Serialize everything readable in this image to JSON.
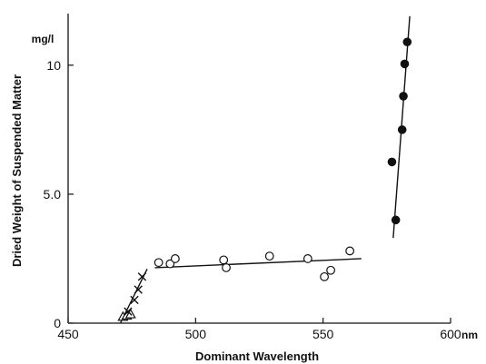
{
  "chart_data": {
    "type": "scatter",
    "xlabel": "Dominant Wavelength",
    "ylabel": "Dried Weight of Suspended Matter",
    "x_unit": "nm",
    "y_unit": "mg/l",
    "xlim": [
      450,
      600
    ],
    "ylim": [
      0,
      12
    ],
    "x_ticks": [
      450,
      500,
      550,
      600
    ],
    "x_tick_labels": [
      "450",
      "500",
      "550",
      "600"
    ],
    "y_ticks": [
      0,
      5.0,
      10
    ],
    "y_tick_labels": [
      "0",
      "5.0",
      "10"
    ],
    "grid": false,
    "legend": "none",
    "series": [
      {
        "marker": "triangle",
        "points": [
          [
            471.5,
            0.25
          ],
          [
            473.0,
            0.3
          ],
          [
            474.5,
            0.35
          ]
        ]
      },
      {
        "marker": "cross",
        "points": [
          [
            473.5,
            0.45
          ],
          [
            476.0,
            0.9
          ],
          [
            477.5,
            1.3
          ],
          [
            479.0,
            1.8
          ]
        ]
      },
      {
        "marker": "open-circle",
        "points": [
          [
            485.5,
            2.35
          ],
          [
            490.0,
            2.3
          ],
          [
            492.0,
            2.5
          ],
          [
            511.0,
            2.45
          ],
          [
            512.0,
            2.15
          ],
          [
            529.0,
            2.6
          ],
          [
            544.0,
            2.5
          ],
          [
            550.5,
            1.8
          ],
          [
            553.0,
            2.05
          ],
          [
            560.5,
            2.8
          ]
        ]
      },
      {
        "marker": "filled-circle",
        "points": [
          [
            577.0,
            6.25
          ],
          [
            578.5,
            4.0
          ],
          [
            581.0,
            7.5
          ],
          [
            581.5,
            8.8
          ],
          [
            582.0,
            10.05
          ],
          [
            583.0,
            10.9
          ]
        ]
      }
    ],
    "fit_lines": [
      {
        "from": [
          470.5,
          0.0
        ],
        "to": [
          481.0,
          2.1
        ]
      },
      {
        "from": [
          484.0,
          2.15
        ],
        "to": [
          565.0,
          2.5
        ]
      },
      {
        "from": [
          577.5,
          3.3
        ],
        "to": [
          584.0,
          11.9
        ]
      }
    ]
  }
}
